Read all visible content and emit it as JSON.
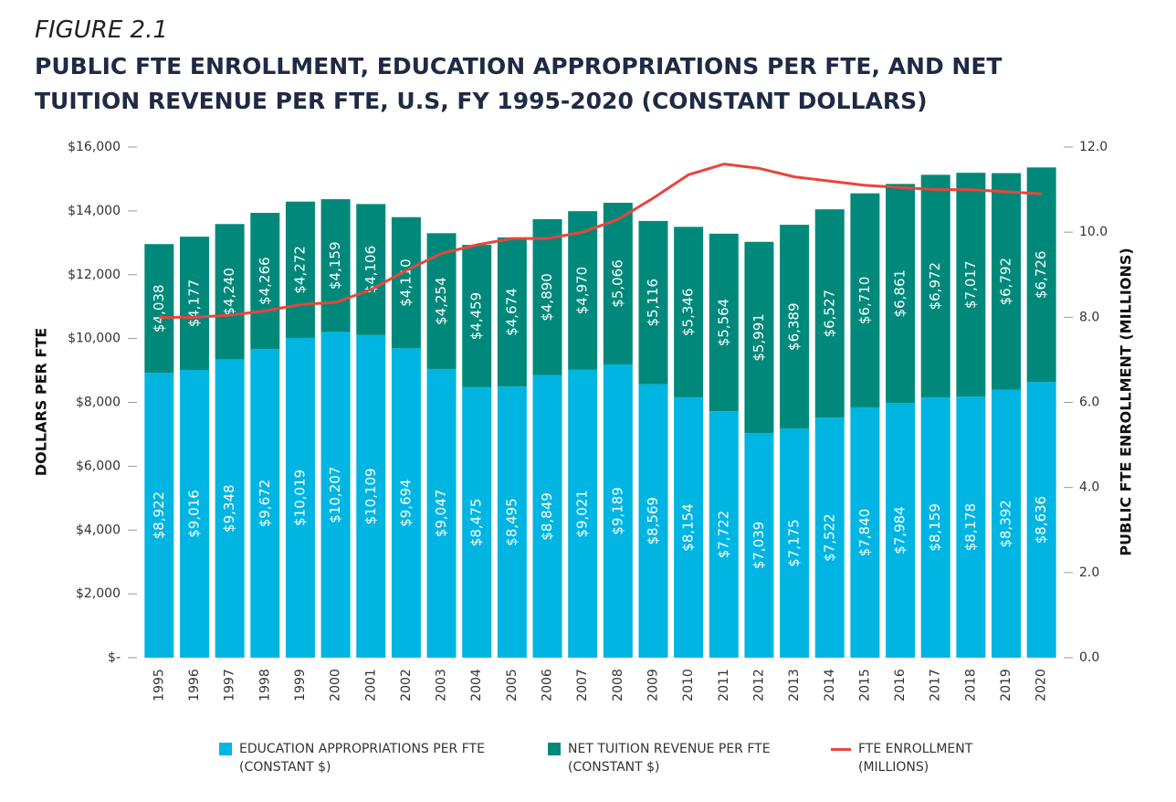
{
  "chart_data": {
    "type": "bar",
    "stacked": true,
    "figure_label": "FIGURE 2.1",
    "title": "PUBLIC FTE ENROLLMENT, EDUCATION APPROPRIATIONS PER FTE, AND NET TUITION REVENUE PER FTE, U.S, FY 1995-2020 (CONSTANT DOLLARS)",
    "y_label": "DOLLARS PER FTE",
    "y2_label": "PUBLIC FTE ENROLLMENT (MILLIONS)",
    "categories": [
      "1995",
      "1996",
      "1997",
      "1998",
      "1999",
      "2000",
      "2001",
      "2002",
      "2003",
      "2004",
      "2005",
      "2006",
      "2007",
      "2008",
      "2009",
      "2010",
      "2011",
      "2012",
      "2013",
      "2014",
      "2015",
      "2016",
      "2017",
      "2018",
      "2019",
      "2020"
    ],
    "series": [
      {
        "name": "EDUCATION APPROPRIATIONS PER FTE (CONSTANT $)",
        "type": "bar",
        "color": "#00b5e2",
        "values": [
          8922,
          9016,
          9348,
          9672,
          10019,
          10207,
          10109,
          9694,
          9047,
          8475,
          8495,
          8849,
          9021,
          9189,
          8569,
          8154,
          7722,
          7039,
          7175,
          7522,
          7840,
          7984,
          8159,
          8178,
          8392,
          8636
        ],
        "value_labels": [
          "$8,922",
          "$9,016",
          "$9,348",
          "$9,672",
          "$10,019",
          "$10,207",
          "$10,109",
          "$9,694",
          "$9,047",
          "$8,475",
          "$8,495",
          "$8,849",
          "$9,021",
          "$9,189",
          "$8,569",
          "$8,154",
          "$7,722",
          "$7,039",
          "$7,175",
          "$7,522",
          "$7,840",
          "$7,984",
          "$8,159",
          "$8,178",
          "$8,392",
          "$8,636"
        ]
      },
      {
        "name": "NET TUITION REVENUE PER FTE (CONSTANT $)",
        "type": "bar",
        "color": "#00897b",
        "values": [
          4038,
          4177,
          4240,
          4266,
          4272,
          4159,
          4106,
          4110,
          4254,
          4459,
          4674,
          4890,
          4970,
          5066,
          5116,
          5346,
          5564,
          5991,
          6389,
          6527,
          6710,
          6861,
          6972,
          7017,
          6792,
          6726
        ],
        "value_labels": [
          "$4,038",
          "$4,177",
          "$4,240",
          "$4,266",
          "$4,272",
          "$4,159",
          "$4,106",
          "$4,110",
          "$4,254",
          "$4,459",
          "$4,674",
          "$4,890",
          "$4,970",
          "$5,066",
          "$5,116",
          "$5,346",
          "$5,564",
          "$5,991",
          "$6,389",
          "$6,527",
          "$6,710",
          "$6,861",
          "$6,972",
          "$7,017",
          "$6,792",
          "$6,726"
        ]
      },
      {
        "name": "FTE ENROLLMENT (MILLIONS)",
        "type": "line",
        "axis": "y2",
        "color": "#e8453c",
        "values": [
          8.0,
          8.0,
          8.05,
          8.15,
          8.3,
          8.35,
          8.65,
          9.1,
          9.5,
          9.7,
          9.85,
          9.85,
          10.0,
          10.3,
          10.8,
          11.35,
          11.6,
          11.5,
          11.3,
          11.2,
          11.1,
          11.05,
          11.0,
          11.0,
          10.95,
          10.9
        ]
      }
    ],
    "ylim": [
      0,
      16000
    ],
    "yticks": [
      {
        "value": 0,
        "label": "$-"
      },
      {
        "value": 2000,
        "label": "$2,000"
      },
      {
        "value": 4000,
        "label": "$4,000"
      },
      {
        "value": 6000,
        "label": "$6,000"
      },
      {
        "value": 8000,
        "label": "$8,000"
      },
      {
        "value": 10000,
        "label": "$10,000"
      },
      {
        "value": 12000,
        "label": "$12,000"
      },
      {
        "value": 14000,
        "label": "$14,000"
      },
      {
        "value": 16000,
        "label": "$16,000"
      }
    ],
    "y2lim": [
      0,
      12
    ],
    "y2ticks": [
      {
        "value": 0,
        "label": "0.0"
      },
      {
        "value": 2,
        "label": "2.0"
      },
      {
        "value": 4,
        "label": "4.0"
      },
      {
        "value": 6,
        "label": "6.0"
      },
      {
        "value": 8,
        "label": "8.0"
      },
      {
        "value": 10,
        "label": "10.0"
      },
      {
        "value": 12,
        "label": "12.0"
      }
    ],
    "grid": false,
    "legend": "bottom"
  }
}
